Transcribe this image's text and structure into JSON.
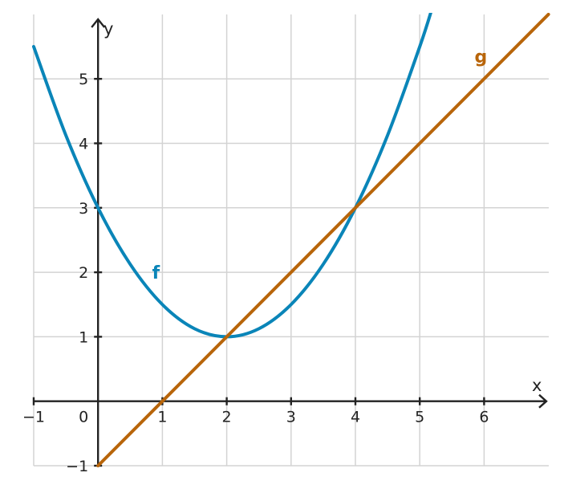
{
  "chart_data": {
    "type": "line",
    "title": "",
    "xlabel": "x",
    "ylabel": "y",
    "xlim": [
      -1,
      7
    ],
    "ylim": [
      -1,
      6
    ],
    "grid": true,
    "x_ticks": [
      -1,
      1,
      2,
      3,
      4,
      5,
      6
    ],
    "x_tick_labels": [
      "−1",
      "1",
      "2",
      "3",
      "4",
      "5",
      "6"
    ],
    "y_ticks": [
      -1,
      1,
      2,
      3,
      4,
      5
    ],
    "y_tick_labels": [
      "−1",
      "1",
      "2",
      "3",
      "4",
      "5"
    ],
    "origin_label": "0",
    "series": [
      {
        "name": "f",
        "color": "#0a85b8",
        "x": [
          -1,
          -0.5,
          0,
          0.5,
          1,
          1.5,
          2,
          2.5,
          3,
          3.5,
          4,
          4.5,
          5,
          5.2
        ],
        "y": [
          5.5,
          4.125,
          3,
          2.125,
          1.5,
          1.125,
          1,
          1.125,
          1.5,
          2.125,
          3,
          4.125,
          5.5,
          6.12
        ],
        "label_at": [
          0.9,
          2
        ]
      },
      {
        "name": "g",
        "color": "#b8650a",
        "x": [
          0,
          7
        ],
        "y": [
          -1,
          6
        ],
        "label_at": [
          5.95,
          5.35
        ]
      }
    ]
  }
}
